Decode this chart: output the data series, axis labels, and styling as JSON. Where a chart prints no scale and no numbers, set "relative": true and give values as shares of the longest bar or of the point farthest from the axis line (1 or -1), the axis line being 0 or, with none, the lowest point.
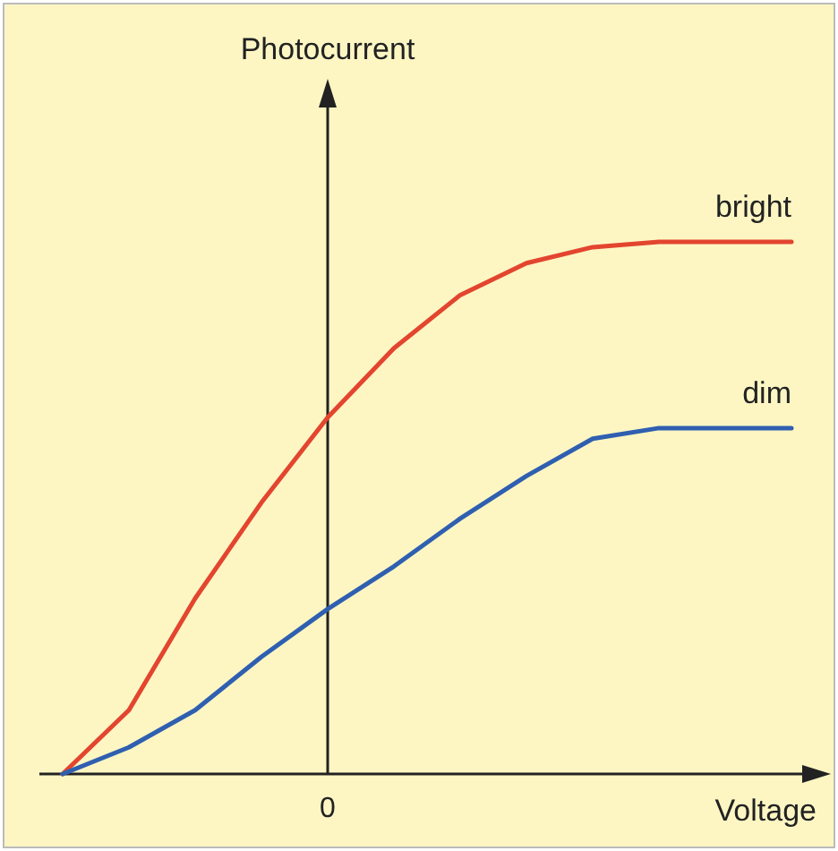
{
  "chart_data": {
    "type": "line",
    "relative": true,
    "xlabel": "Voltage",
    "categories": [
      null,
      null,
      null,
      null,
      null,
      null,
      null,
      null,
      null,
      null,
      null,
      null
    ],
    "annotations": [
      "Photocurrent",
      "0"
    ],
    "legend": false,
    "grid": false,
    "series": [
      {
        "name": "bright",
        "color": "#e3452f",
        "values": [
          0,
          0.12,
          0.33,
          0.51,
          0.67,
          0.8,
          0.9,
          0.96,
          0.99,
          1,
          1,
          1
        ]
      },
      {
        "name": "dim",
        "color": "#2f5fb0",
        "values": [
          0,
          0.05,
          0.12,
          0.22,
          0.31,
          0.39,
          0.48,
          0.56,
          0.63,
          0.65,
          0.65,
          0.65
        ]
      }
    ]
  }
}
